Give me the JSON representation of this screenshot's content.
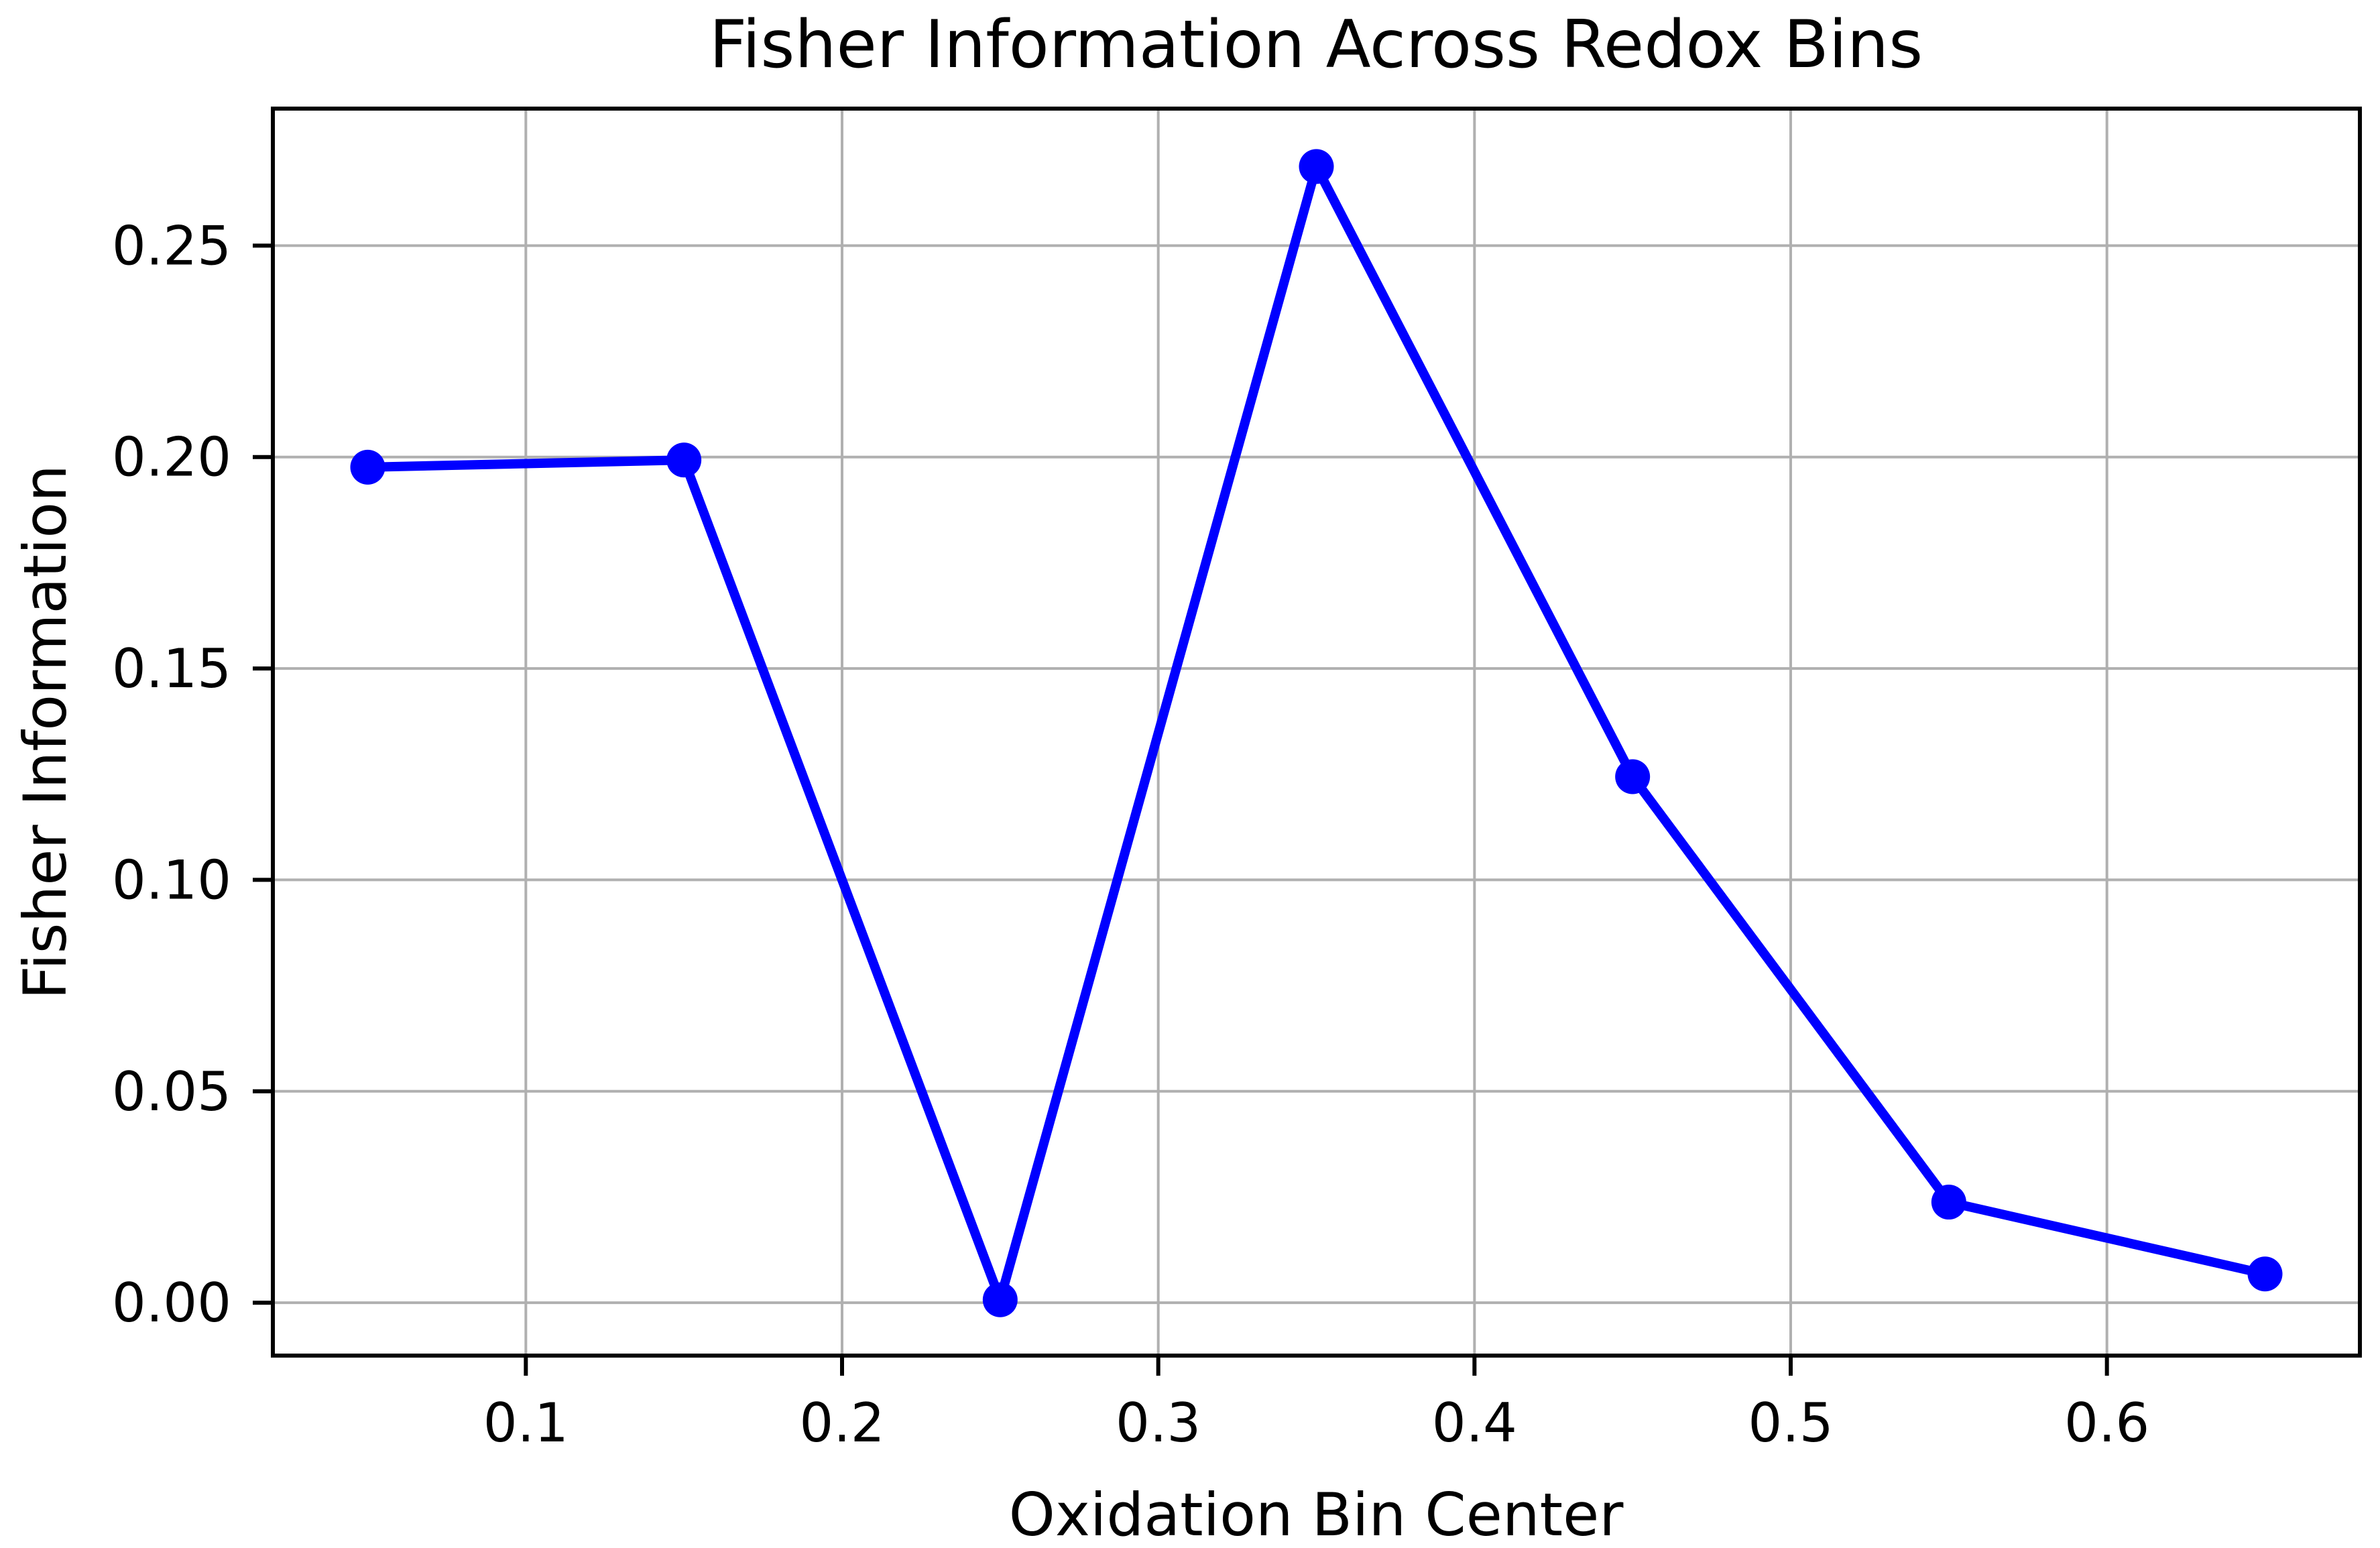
{
  "chart_data": {
    "type": "line",
    "title": "Fisher Information Across Redox Bins",
    "xlabel": "Oxidation Bin Center",
    "ylabel": "Fisher Information",
    "series": [
      {
        "name": "Fisher Information",
        "x": [
          0.05,
          0.15,
          0.25,
          0.35,
          0.45,
          0.55,
          0.65
        ],
        "y": [
          0.1976,
          0.1993,
          0.0007,
          0.2687,
          0.1244,
          0.0238,
          0.0068
        ]
      }
    ],
    "xlim": [
      0.02,
      0.68
    ],
    "ylim": [
      -0.0125,
      0.2824
    ],
    "xticks": {
      "values": [
        0.1,
        0.2,
        0.3,
        0.4,
        0.5,
        0.6
      ],
      "labels": [
        "0.1",
        "0.2",
        "0.3",
        "0.4",
        "0.5",
        "0.6"
      ]
    },
    "yticks": {
      "values": [
        0.0,
        0.05,
        0.1,
        0.15,
        0.2,
        0.25
      ],
      "labels": [
        "0.00",
        "0.05",
        "0.10",
        "0.15",
        "0.20",
        "0.25"
      ]
    },
    "grid": true,
    "legend": false,
    "marker": "circle",
    "colors": {
      "line": "#0000ff",
      "marker": "#0000ff",
      "grid": "#b0b0b0",
      "spine": "#000000",
      "text": "#000000",
      "background": "#ffffff"
    }
  }
}
